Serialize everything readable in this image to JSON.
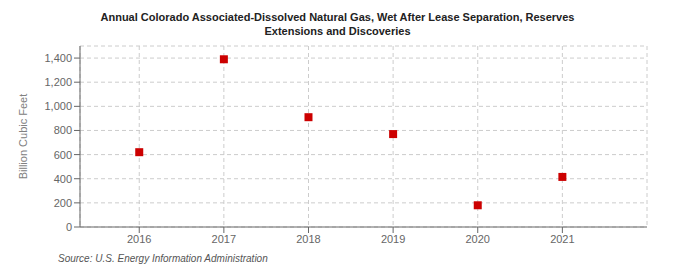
{
  "chart_data": {
    "type": "scatter",
    "title": "Annual Colorado Associated-Dissolved Natural Gas, Wet After Lease Separation, Reserves\nExtensions and Discoveries",
    "ylabel": "Billion Cubic Feet",
    "annotations": [
      "Source: U.S. Energy Information Administration"
    ],
    "x": [
      2016,
      2017,
      2018,
      2019,
      2020,
      2021
    ],
    "values": [
      620,
      1390,
      910,
      770,
      180,
      415
    ],
    "color": "#cc0000",
    "marker": "square",
    "xlim": [
      2015.3,
      2022.0
    ],
    "xticks": [
      2016,
      2017,
      2018,
      2019,
      2020,
      2021
    ],
    "ylim": [
      0,
      1500
    ],
    "yticks": [
      0,
      200,
      400,
      600,
      {
        "value": 800,
        "label": "800"
      },
      {
        "value": 1000,
        "label": "1,000"
      },
      {
        "value": 1200,
        "label": "1,200"
      },
      {
        "value": 1400,
        "label": "1,400"
      }
    ],
    "grid": true
  }
}
